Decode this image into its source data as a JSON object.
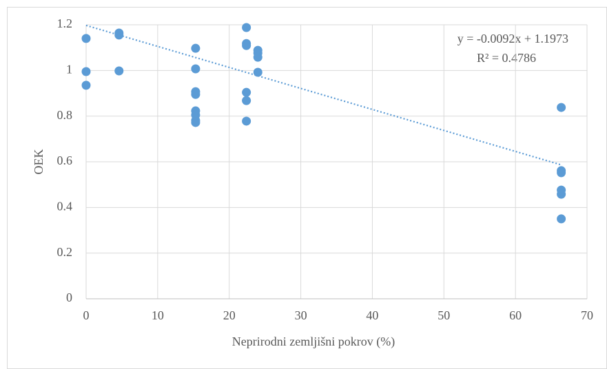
{
  "chart_data": {
    "type": "scatter",
    "x_label": "Neprirodni zemljišni pokrov (%)",
    "y_label": "OEK",
    "color": "#5b9bd5",
    "grid": true,
    "xlim": [
      0,
      70
    ],
    "xticks": [
      0,
      10,
      20,
      30,
      40,
      50,
      60,
      70
    ],
    "ylim": [
      0,
      1.2
    ],
    "yticks": [
      0,
      0.2,
      0.4,
      0.6,
      0.8,
      1,
      1.2
    ],
    "x": [
      0,
      0,
      0,
      4.6,
      4.6,
      4.6,
      15.3,
      15.3,
      15.3,
      15.3,
      15.3,
      15.3,
      15.3,
      15.3,
      22.4,
      22.4,
      22.4,
      22.4,
      22.4,
      22.4,
      24.0,
      24.0,
      24.0,
      24.0,
      66.4,
      66.4,
      66.4,
      66.4,
      66.4,
      66.4
    ],
    "values": [
      1.14,
      0.995,
      0.935,
      1.164,
      1.155,
      0.998,
      1.097,
      1.007,
      0.907,
      0.895,
      0.823,
      0.805,
      0.781,
      0.772,
      1.188,
      1.118,
      1.109,
      0.904,
      0.868,
      0.778,
      1.088,
      1.076,
      1.058,
      0.992,
      0.838,
      0.561,
      0.552,
      0.476,
      0.458,
      0.35
    ],
    "trendline": {
      "slope": -0.0092,
      "intercept": 1.1973
    },
    "annotations": [
      "y = -0.0092x + 1.1973",
      "R² = 0.4786"
    ]
  }
}
